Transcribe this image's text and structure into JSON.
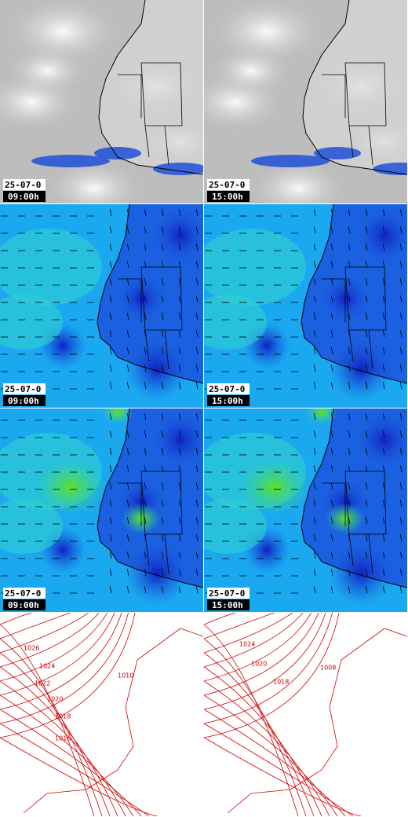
{
  "rows": [
    [
      {
        "date": "25-07-0",
        "time": "09:00h"
      },
      {
        "date": "25-07-0",
        "time": "15:00h"
      }
    ],
    [
      {
        "date": "25-07-0",
        "time": "09:00h"
      },
      {
        "date": "25-07-0",
        "time": "15:00h"
      }
    ],
    [
      {
        "date": "25-07-0",
        "time": "09:00h"
      },
      {
        "date": "25-07-0",
        "time": "15:00h"
      }
    ]
  ],
  "isobars": [
    [
      "1026",
      "1024",
      "1022",
      "1020",
      "1018",
      "1016",
      "1010"
    ],
    [
      "1024",
      "1020",
      "1018",
      "1008"
    ]
  ]
}
